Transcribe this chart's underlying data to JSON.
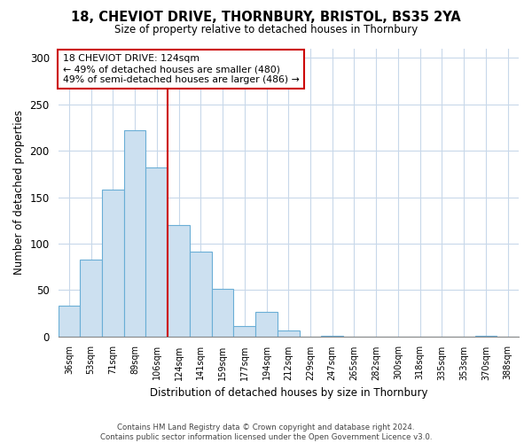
{
  "title": "18, CHEVIOT DRIVE, THORNBURY, BRISTOL, BS35 2YA",
  "subtitle": "Size of property relative to detached houses in Thornbury",
  "xlabel": "Distribution of detached houses by size in Thornbury",
  "ylabel": "Number of detached properties",
  "bar_labels": [
    "36sqm",
    "53sqm",
    "71sqm",
    "89sqm",
    "106sqm",
    "124sqm",
    "141sqm",
    "159sqm",
    "177sqm",
    "194sqm",
    "212sqm",
    "229sqm",
    "247sqm",
    "265sqm",
    "282sqm",
    "300sqm",
    "318sqm",
    "335sqm",
    "353sqm",
    "370sqm",
    "388sqm"
  ],
  "bar_values": [
    33,
    83,
    158,
    222,
    182,
    120,
    91,
    51,
    11,
    26,
    6,
    0,
    1,
    0,
    0,
    0,
    0,
    0,
    0,
    1,
    0
  ],
  "bar_color": "#cce0f0",
  "bar_edge_color": "#6aaed6",
  "vline_index": 5,
  "vline_color": "#cc0000",
  "annotation_title": "18 CHEVIOT DRIVE: 124sqm",
  "annotation_line1": "← 49% of detached houses are smaller (480)",
  "annotation_line2": "49% of semi-detached houses are larger (486) →",
  "annotation_box_edgecolor": "#cc0000",
  "ylim": [
    0,
    310
  ],
  "yticks": [
    0,
    50,
    100,
    150,
    200,
    250,
    300
  ],
  "footnote1": "Contains HM Land Registry data © Crown copyright and database right 2024.",
  "footnote2": "Contains public sector information licensed under the Open Government Licence v3.0."
}
